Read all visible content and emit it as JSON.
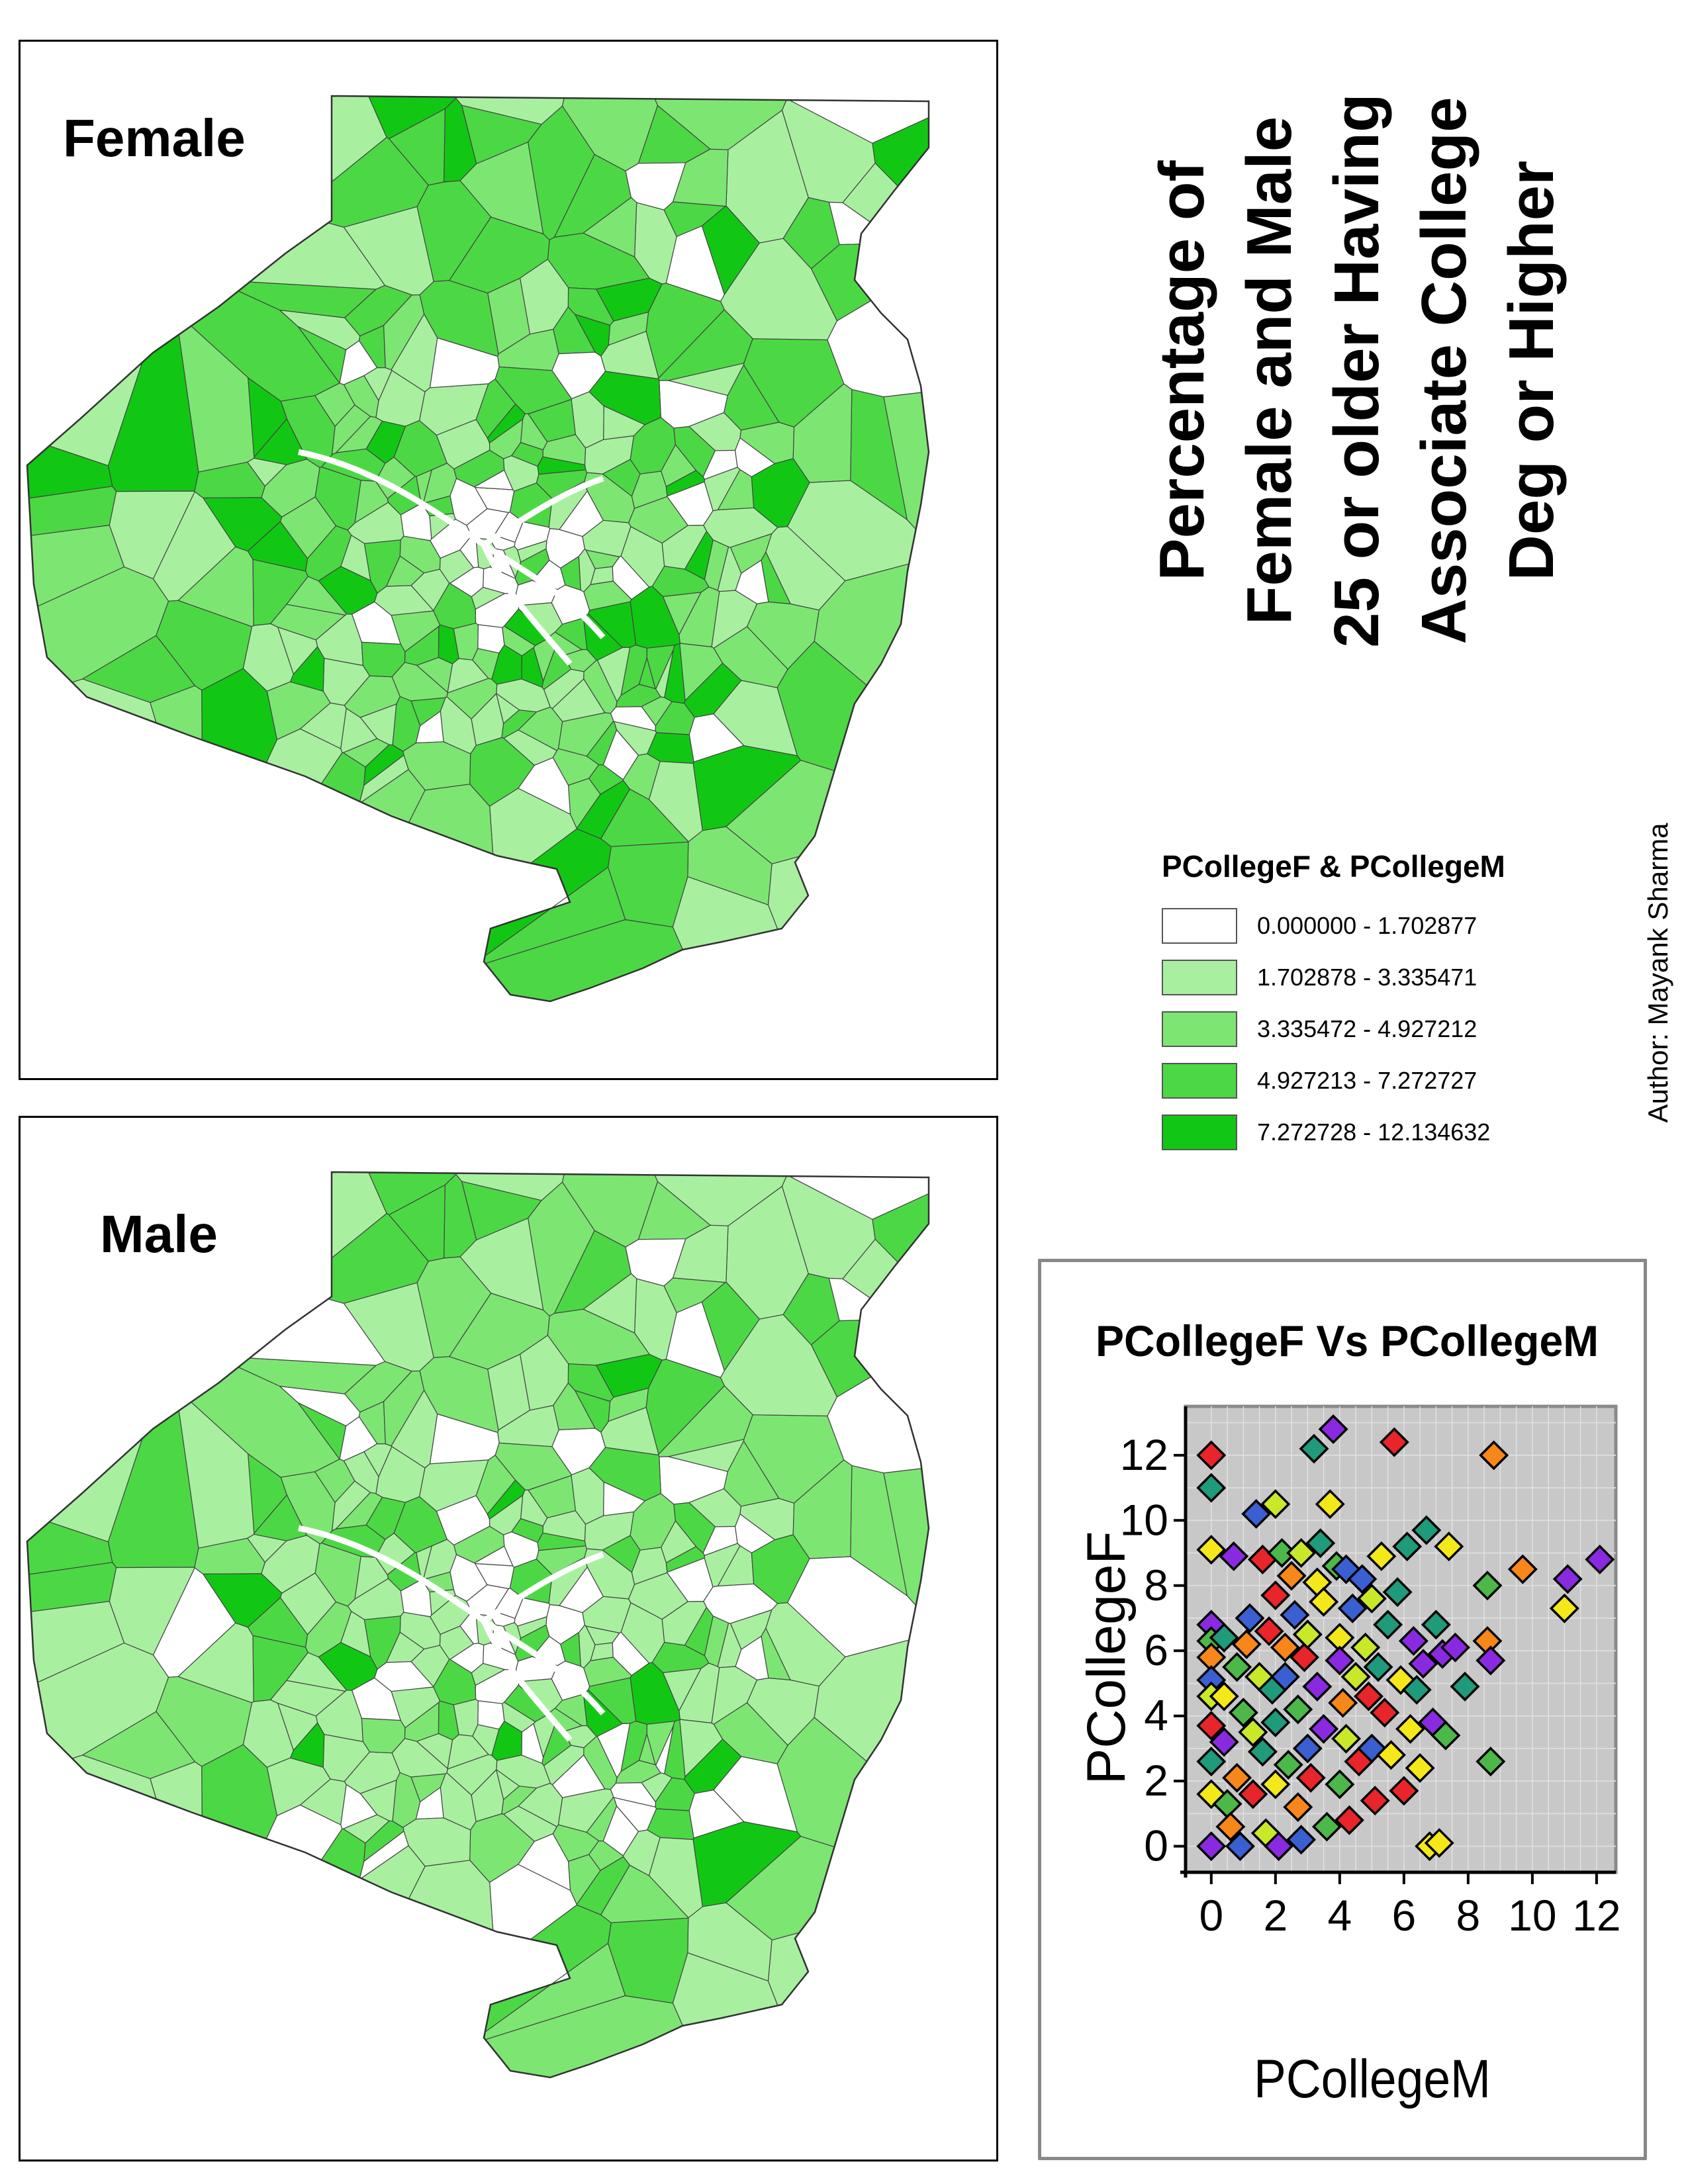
{
  "maps": {
    "female": {
      "title": "Female"
    },
    "male": {
      "title": "Male"
    }
  },
  "main_title": {
    "lines": [
      "Percentage of",
      "Female and Male",
      "25 or older Having",
      "Associate College",
      "Deg or Higher"
    ]
  },
  "author": "Author: Mayank Sharma",
  "legend": {
    "title": "PCollegeF & PCollegeM",
    "classes": [
      {
        "label": "0.000000 - 1.702877",
        "color": "#ffffff"
      },
      {
        "label": "1.702878 - 3.335471",
        "color": "#a8f0a0"
      },
      {
        "label": "3.335472 - 4.927212",
        "color": "#7de673"
      },
      {
        "label": "4.927213 - 7.272727",
        "color": "#4cd845"
      },
      {
        "label": "7.272728 - 12.134632",
        "color": "#12c714"
      }
    ]
  },
  "colors": {
    "plot_background": "#c8c8c8",
    "marker_palette": [
      "#e8252a",
      "#f7861b",
      "#f4e81a",
      "#c9e82a",
      "#4cb84a",
      "#1f9a7a",
      "#3a5fd0",
      "#8a2ae0"
    ]
  },
  "chart_data": {
    "type": "scatter",
    "title": "PCollegeF Vs PCollegeM",
    "xlabel": "PCollegeM",
    "ylabel": "PCollegeF",
    "xlim": [
      -0.8,
      12.6
    ],
    "ylim": [
      -0.8,
      13.5
    ],
    "xticks": [
      0,
      2,
      4,
      6,
      8,
      10,
      12
    ],
    "yticks": [
      0,
      2,
      4,
      6,
      8,
      10,
      12
    ],
    "grid": true,
    "legend": "none",
    "marker": "diamond",
    "points": [
      [
        0,
        12
      ],
      [
        0,
        11
      ],
      [
        0,
        9.1
      ],
      [
        0,
        6.8
      ],
      [
        0,
        6.3
      ],
      [
        0,
        5.8
      ],
      [
        0,
        5.1
      ],
      [
        0,
        4.6
      ],
      [
        0,
        3.7
      ],
      [
        0,
        2.6
      ],
      [
        0,
        1.6
      ],
      [
        0,
        0
      ],
      [
        0.4,
        6.4
      ],
      [
        0.4,
        4.6
      ],
      [
        0.4,
        3.2
      ],
      [
        0.5,
        1.3
      ],
      [
        0.6,
        0.6
      ],
      [
        0.7,
        8.9
      ],
      [
        0.8,
        5.5
      ],
      [
        0.8,
        2.1
      ],
      [
        0.9,
        0
      ],
      [
        1,
        4.1
      ],
      [
        1.1,
        6.2
      ],
      [
        1.2,
        7
      ],
      [
        1.3,
        3.5
      ],
      [
        1.3,
        1.6
      ],
      [
        1.4,
        10.2
      ],
      [
        1.5,
        5.2
      ],
      [
        1.6,
        8.8
      ],
      [
        1.6,
        2.9
      ],
      [
        1.7,
        0.4
      ],
      [
        1.8,
        6.6
      ],
      [
        1.9,
        4.8
      ],
      [
        2,
        10.5
      ],
      [
        2,
        7.7
      ],
      [
        2,
        3.8
      ],
      [
        2,
        1.9
      ],
      [
        2.1,
        0
      ],
      [
        2.2,
        9
      ],
      [
        2.3,
        6.1
      ],
      [
        2.3,
        5.2
      ],
      [
        2.4,
        2.5
      ],
      [
        2.5,
        8.3
      ],
      [
        2.6,
        7.1
      ],
      [
        2.7,
        4.2
      ],
      [
        2.7,
        1.2
      ],
      [
        2.8,
        0.2
      ],
      [
        2.8,
        9
      ],
      [
        2.9,
        5.8
      ],
      [
        3,
        3
      ],
      [
        3,
        6.5
      ],
      [
        3.1,
        2.1
      ],
      [
        3.2,
        12.2
      ],
      [
        3.3,
        8.1
      ],
      [
        3.3,
        4.9
      ],
      [
        3.4,
        9.3
      ],
      [
        3.5,
        7.5
      ],
      [
        3.5,
        3.6
      ],
      [
        3.6,
        0.6
      ],
      [
        3.7,
        10.5
      ],
      [
        3.8,
        12.8
      ],
      [
        3.9,
        8.6
      ],
      [
        4,
        6.4
      ],
      [
        4,
        5.7
      ],
      [
        4,
        1.9
      ],
      [
        4.1,
        4.4
      ],
      [
        4.2,
        8.5
      ],
      [
        4.2,
        3.3
      ],
      [
        4.3,
        0.8
      ],
      [
        4.4,
        7.3
      ],
      [
        4.5,
        5.2
      ],
      [
        4.6,
        2.6
      ],
      [
        4.7,
        8.2
      ],
      [
        4.8,
        6.1
      ],
      [
        4.9,
        4.6
      ],
      [
        5,
        3
      ],
      [
        5,
        7.6
      ],
      [
        5.1,
        1.4
      ],
      [
        5.2,
        5.5
      ],
      [
        5.3,
        8.9
      ],
      [
        5.4,
        4.1
      ],
      [
        5.5,
        6.8
      ],
      [
        5.6,
        2.8
      ],
      [
        5.7,
        12.4
      ],
      [
        5.8,
        7.8
      ],
      [
        5.9,
        5.1
      ],
      [
        6,
        1.7
      ],
      [
        6.1,
        9.2
      ],
      [
        6.2,
        3.6
      ],
      [
        6.3,
        6.3
      ],
      [
        6.4,
        4.8
      ],
      [
        6.5,
        2.4
      ],
      [
        6.6,
        5.6
      ],
      [
        6.7,
        9.7
      ],
      [
        6.8,
        0
      ],
      [
        6.9,
        3.8
      ],
      [
        7,
        6.8
      ],
      [
        7.1,
        0.1
      ],
      [
        7.2,
        5.9
      ],
      [
        7.3,
        3.4
      ],
      [
        7.4,
        9.2
      ],
      [
        7.6,
        6.1
      ],
      [
        7.9,
        4.9
      ],
      [
        8.6,
        8
      ],
      [
        8.6,
        6.3
      ],
      [
        8.7,
        5.7
      ],
      [
        8.7,
        2.6
      ],
      [
        8.8,
        12
      ],
      [
        9.7,
        8.5
      ],
      [
        11,
        7.3
      ],
      [
        11.1,
        8.2
      ],
      [
        12.1,
        8.8
      ]
    ]
  }
}
